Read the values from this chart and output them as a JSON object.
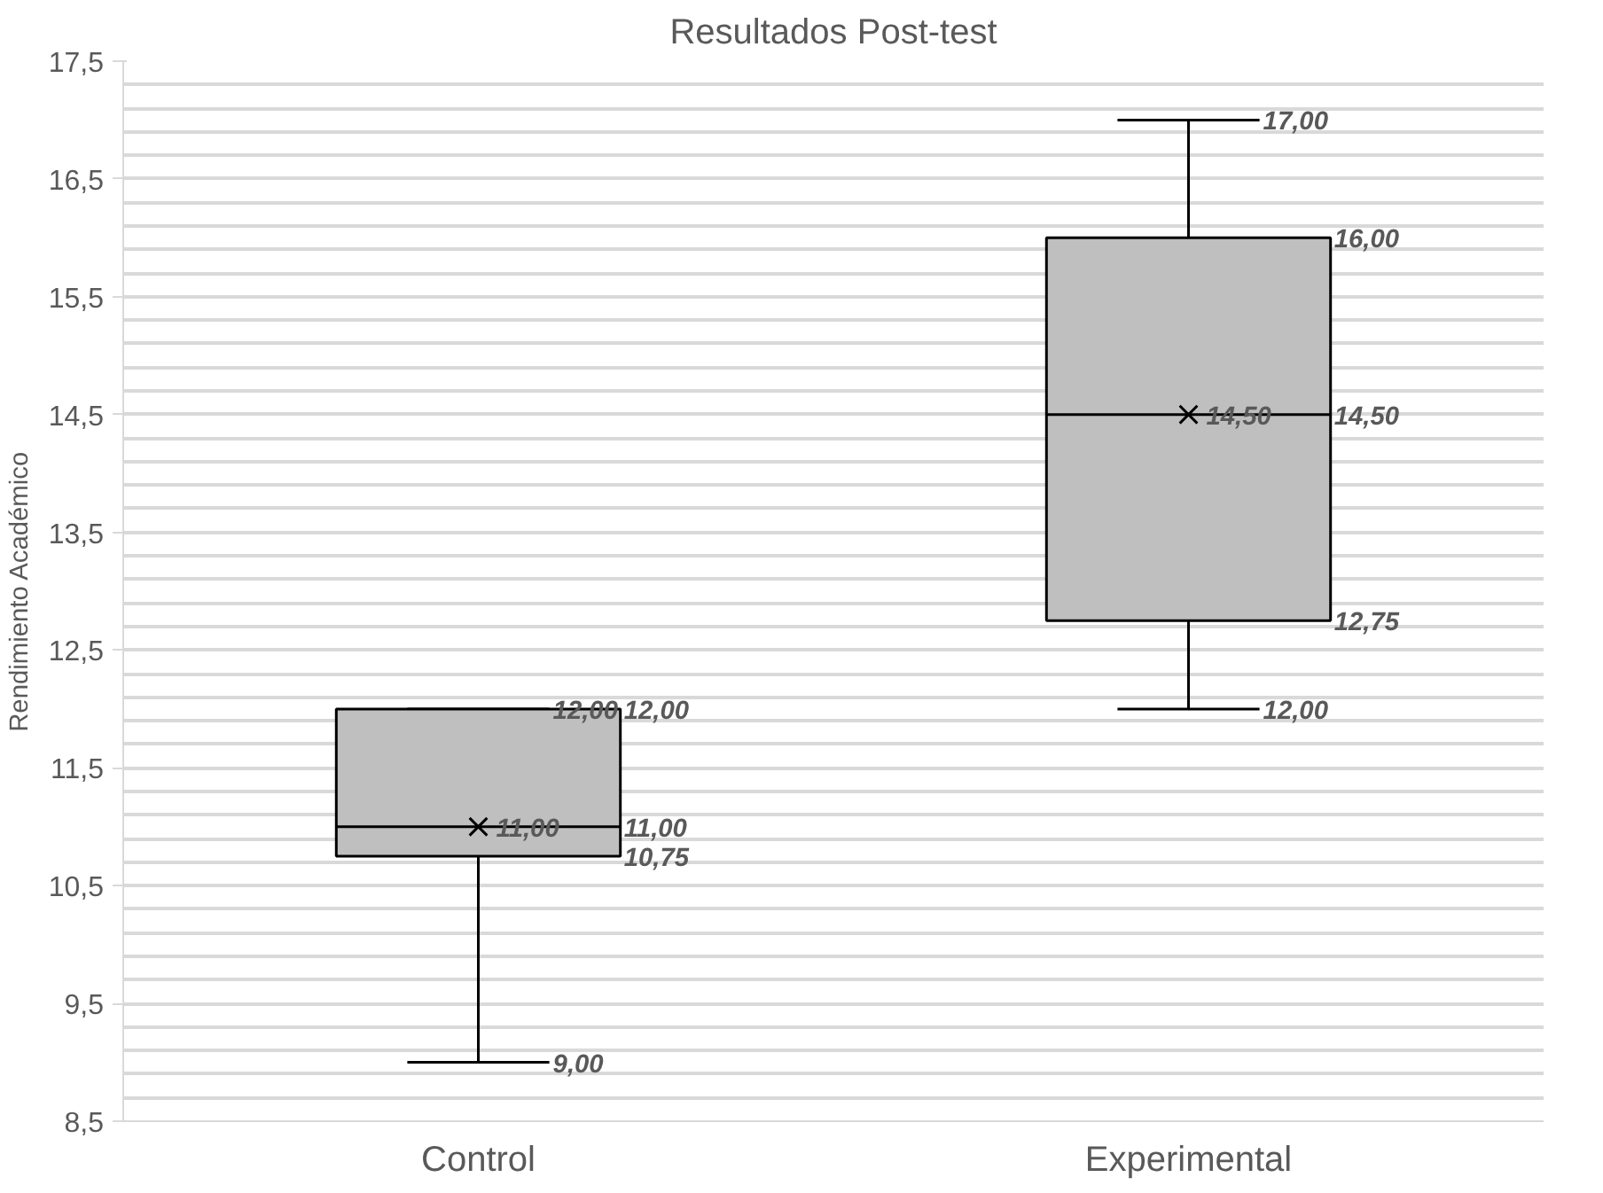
{
  "chart_data": {
    "type": "box",
    "title": "Resultados Post-test",
    "ylabel": "Rendimiento Académico",
    "categories": [
      "Control",
      "Experimental"
    ],
    "boxes": [
      {
        "low": 9.0,
        "q1": 10.75,
        "median": 11.0,
        "q3": 12.0,
        "high": 12.0,
        "mean": 11.0
      },
      {
        "low": 12.0,
        "q1": 12.75,
        "median": 14.5,
        "q3": 16.0,
        "high": 17.0,
        "mean": 14.5
      }
    ],
    "color": "#bfbfbf",
    "ylim": [
      8.5,
      17.5
    ],
    "yticks": [
      {
        "value": 8.5,
        "label": "8,5"
      },
      {
        "value": 9.5,
        "label": "9,5"
      },
      {
        "value": 10.5,
        "label": "10,5"
      },
      {
        "value": 11.5,
        "label": "11,5"
      },
      {
        "value": 12.5,
        "label": "12,5"
      },
      {
        "value": 13.5,
        "label": "13,5"
      },
      {
        "value": 14.5,
        "label": "14,5"
      },
      {
        "value": 15.5,
        "label": "15,5"
      },
      {
        "value": 16.5,
        "label": "16,5"
      },
      {
        "value": 17.5,
        "label": "17,5"
      }
    ],
    "value_labels": [
      {
        "low": "9,00",
        "high": "12,00",
        "q1": "10,75",
        "q3": "12,00",
        "median": "11,00",
        "mean": "11,00"
      },
      {
        "low": "12,00",
        "high": "17,00",
        "q1": "12,75",
        "q3": "16,00",
        "median": "14,50",
        "mean": "14,50"
      }
    ],
    "grid": true
  }
}
